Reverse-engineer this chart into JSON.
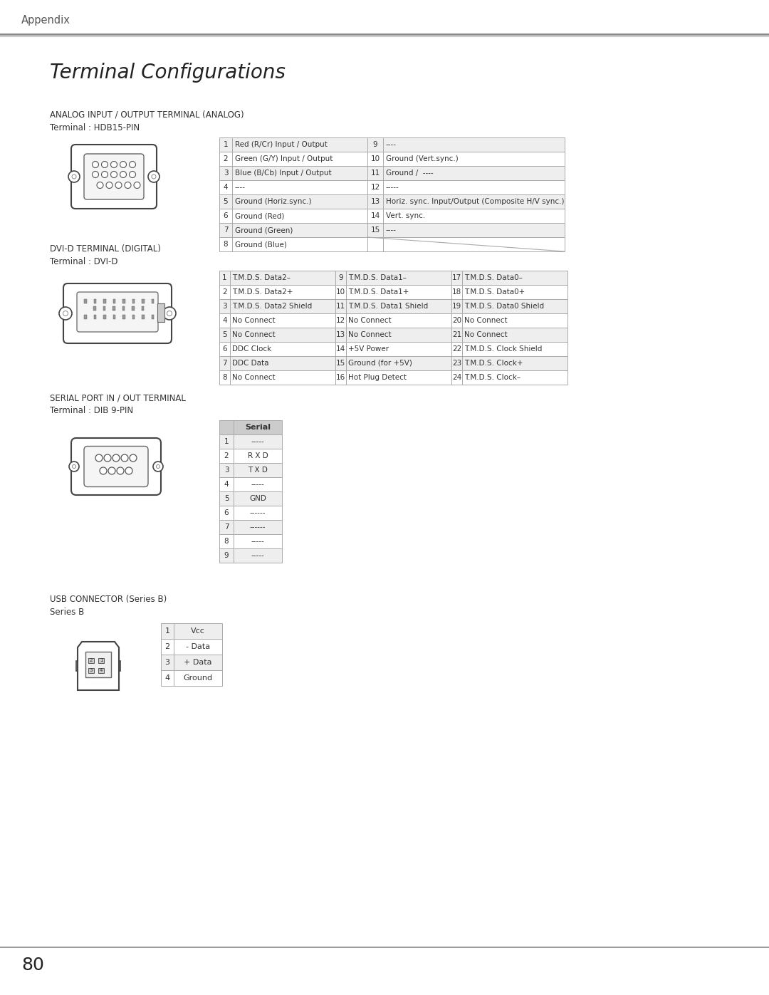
{
  "page_title": "Appendix",
  "section_title": "Terminal Configurations",
  "bg_color": "#ffffff",
  "table_border_color": "#aaaaaa",
  "table_header_bg": "#cccccc",
  "table_row_bg_even": "#eeeeee",
  "table_row_bg_odd": "#ffffff",
  "footer_text": "80",
  "sections": [
    {
      "title": "ANALOG INPUT / OUTPUT TERMINAL (ANALOG)",
      "subtitle": "Terminal : HDB15-PIN",
      "table_type": "two_col",
      "col1": [
        [
          "1",
          "Red (R/Cr) Input / Output"
        ],
        [
          "2",
          "Green (G/Y) Input / Output"
        ],
        [
          "3",
          "Blue (B/Cb) Input / Output"
        ],
        [
          "4",
          "----"
        ],
        [
          "5",
          "Ground (Horiz.sync.)"
        ],
        [
          "6",
          "Ground (Red)"
        ],
        [
          "7",
          "Ground (Green)"
        ],
        [
          "8",
          "Ground (Blue)"
        ]
      ],
      "col2": [
        [
          "9",
          "----"
        ],
        [
          "10",
          "Ground (Vert.sync.)"
        ],
        [
          "11",
          "Ground /  ----"
        ],
        [
          "12",
          "-----"
        ],
        [
          "13",
          "Horiz. sync. Input/Output (Composite H/V sync.)"
        ],
        [
          "14",
          "Vert. sync."
        ],
        [
          "15",
          "----"
        ],
        [
          "",
          ""
        ]
      ]
    },
    {
      "title": "DVI-D TERMINAL (DIGITAL)",
      "subtitle": "Terminal : DVI-D",
      "table_type": "three_col",
      "col1": [
        [
          "1",
          "T.M.D.S. Data2–"
        ],
        [
          "2",
          "T.M.D.S. Data2+"
        ],
        [
          "3",
          "T.M.D.S. Data2 Shield"
        ],
        [
          "4",
          "No Connect"
        ],
        [
          "5",
          "No Connect"
        ],
        [
          "6",
          "DDC Clock"
        ],
        [
          "7",
          "DDC Data"
        ],
        [
          "8",
          "No Connect"
        ]
      ],
      "col2": [
        [
          "9",
          "T.M.D.S. Data1–"
        ],
        [
          "10",
          "T.M.D.S. Data1+"
        ],
        [
          "11",
          "T.M.D.S. Data1 Shield"
        ],
        [
          "12",
          "No Connect"
        ],
        [
          "13",
          "No Connect"
        ],
        [
          "14",
          "+5V Power"
        ],
        [
          "15",
          "Ground (for +5V)"
        ],
        [
          "16",
          "Hot Plug Detect"
        ]
      ],
      "col3": [
        [
          "17",
          "T.M.D.S. Data0–"
        ],
        [
          "18",
          "T.M.D.S. Data0+"
        ],
        [
          "19",
          "T.M.D.S. Data0 Shield"
        ],
        [
          "20",
          "No Connect"
        ],
        [
          "21",
          "No Connect"
        ],
        [
          "22",
          "T.M.D.S. Clock Shield"
        ],
        [
          "23",
          "T.M.D.S. Clock+"
        ],
        [
          "24",
          "T.M.D.S. Clock–"
        ]
      ]
    },
    {
      "title": "SERIAL PORT IN / OUT TERMINAL",
      "subtitle": "Terminal : DIB 9-PIN",
      "table_type": "serial",
      "header": "Serial",
      "rows": [
        [
          "1",
          "-----"
        ],
        [
          "2",
          "R X D"
        ],
        [
          "3",
          "T X D"
        ],
        [
          "4",
          "-----"
        ],
        [
          "5",
          "GND"
        ],
        [
          "6",
          "------"
        ],
        [
          "7",
          "------"
        ],
        [
          "8",
          "-----"
        ],
        [
          "9",
          "-----"
        ]
      ]
    },
    {
      "title": "USB CONNECTOR (Series B)",
      "subtitle": "Series B",
      "table_type": "usb",
      "rows": [
        [
          "1",
          "Vcc"
        ],
        [
          "2",
          "- Data"
        ],
        [
          "3",
          "+ Data"
        ],
        [
          "4",
          "Ground"
        ]
      ]
    }
  ]
}
